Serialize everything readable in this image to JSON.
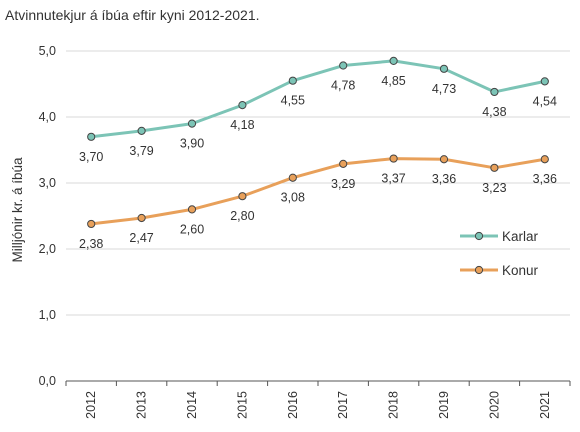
{
  "chart_data": {
    "type": "line",
    "title": "Atvinnutekjur á íbúa eftir kyni 2012-2021.",
    "xlabel": "",
    "ylabel": "Milljónir kr. á íbúa",
    "x": [
      "2012",
      "2013",
      "2014",
      "2015",
      "2016",
      "2017",
      "2018",
      "2019",
      "2020",
      "2021"
    ],
    "ylim": [
      0,
      5
    ],
    "yticks": [
      "0,0",
      "1,0",
      "2,0",
      "3,0",
      "4,0",
      "5,0"
    ],
    "grid": "horizontal",
    "legend_position": "right",
    "series": [
      {
        "name": "Karlar",
        "color": "#7cc4b6",
        "values": [
          3.7,
          3.79,
          3.9,
          4.18,
          4.55,
          4.78,
          4.85,
          4.73,
          4.38,
          4.54
        ],
        "labels": [
          "3,70",
          "3,79",
          "3,90",
          "4,18",
          "4,55",
          "4,78",
          "4,85",
          "4,73",
          "4,38",
          "4,54"
        ]
      },
      {
        "name": "Konur",
        "color": "#e8a05a",
        "values": [
          2.38,
          2.47,
          2.6,
          2.8,
          3.08,
          3.29,
          3.37,
          3.36,
          3.23,
          3.36
        ],
        "labels": [
          "2,38",
          "2,47",
          "2,60",
          "2,80",
          "3,08",
          "3,29",
          "3,37",
          "3,36",
          "3,23",
          "3,36"
        ]
      }
    ]
  }
}
